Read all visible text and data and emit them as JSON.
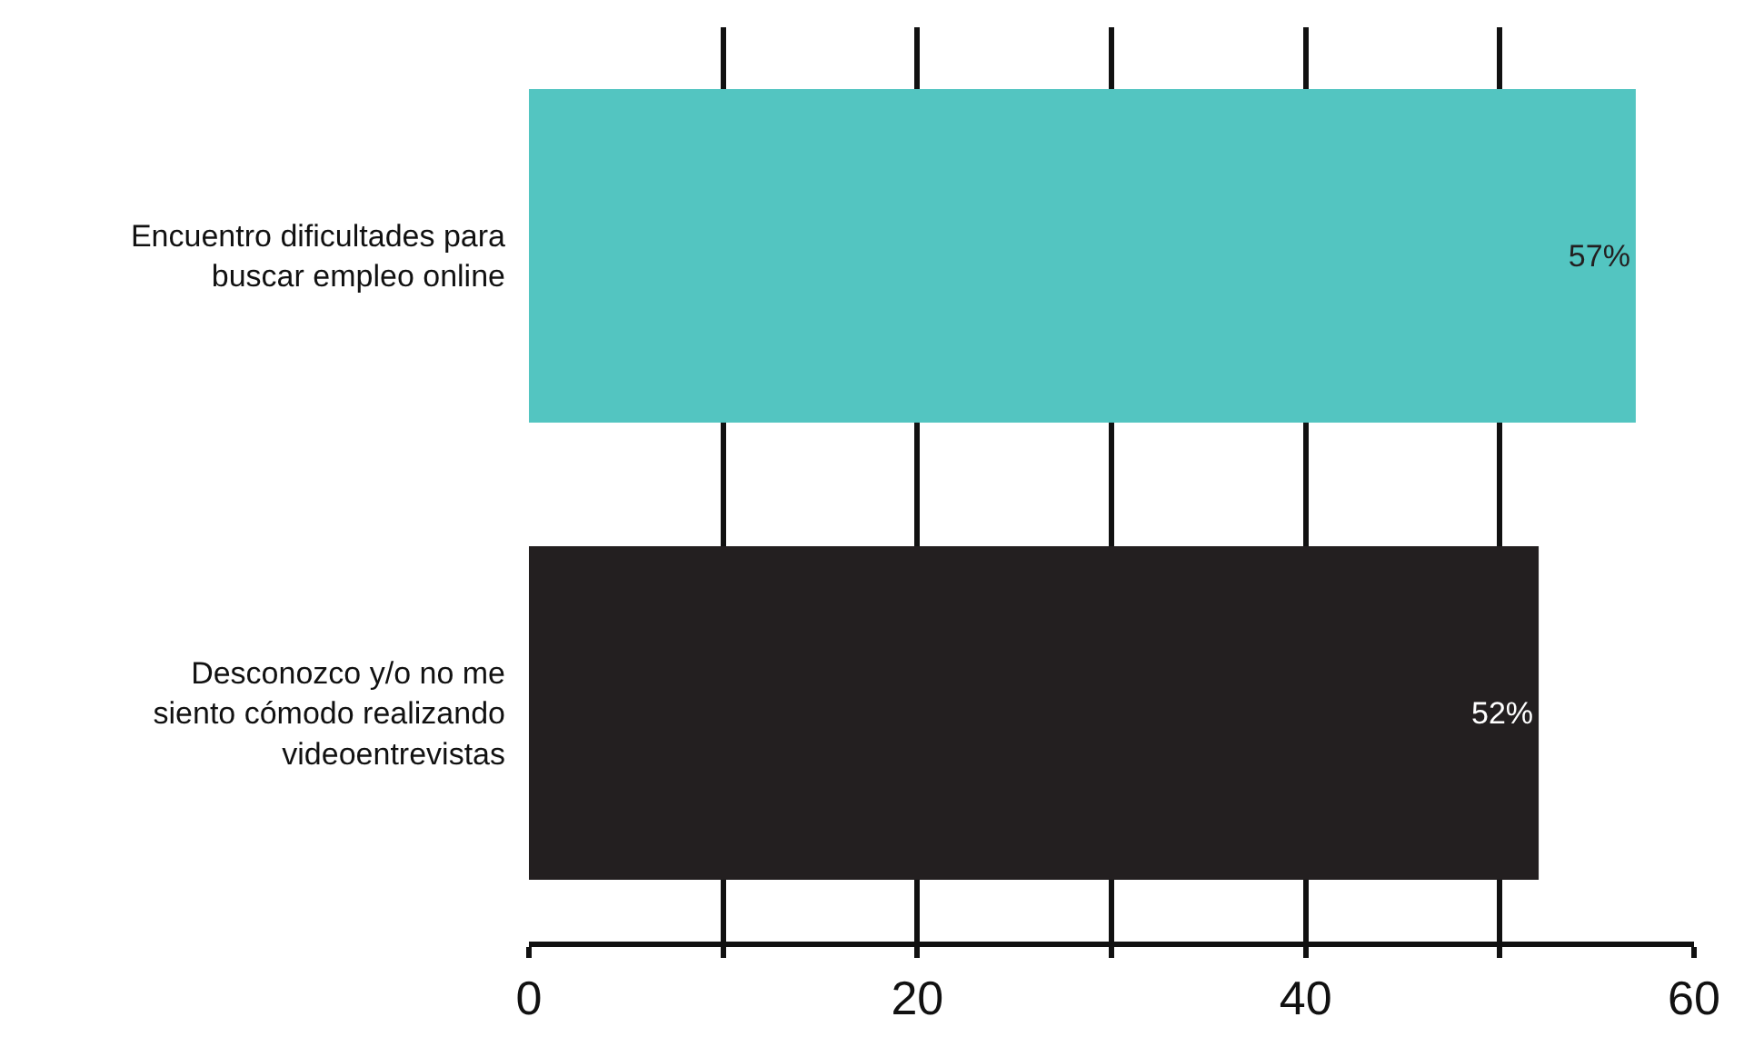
{
  "chart_data": {
    "type": "bar",
    "orientation": "horizontal",
    "categories": [
      "Encuentro dificultades para\nbuscar empleo online",
      "Desconozco y/o no me\nsiento cómodo realizando\nvideoentrevistas"
    ],
    "values": [
      57,
      52
    ],
    "colors": [
      "#53c5c1",
      "#231f20"
    ],
    "value_labels": [
      "57%",
      "52%"
    ],
    "xlim": [
      0,
      60
    ],
    "xticks": [
      0,
      {
        "value": 10,
        "label": null
      },
      20,
      {
        "value": 30,
        "label": null
      },
      40,
      {
        "value": 50,
        "label": null
      },
      60
    ],
    "grid": "x",
    "legend": false
  }
}
